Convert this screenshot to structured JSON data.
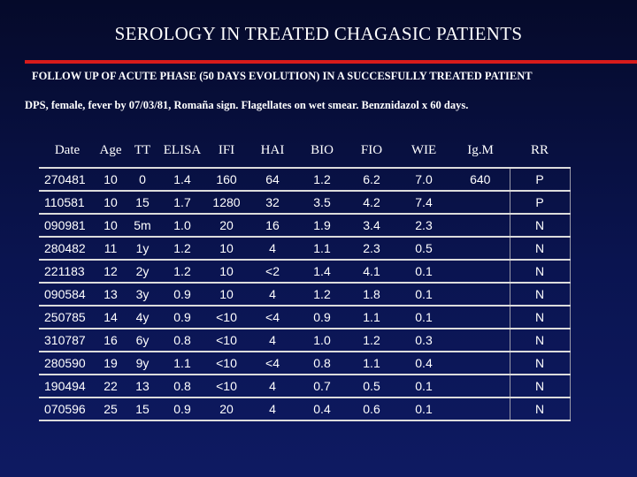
{
  "title": "SEROLOGY IN TREATED CHAGASIC PATIENTS",
  "subtitle": "FOLLOW UP OF ACUTE PHASE (50 DAYS EVOLUTION) IN A SUCCESFULLY TREATED PATIENT",
  "patient_info": "DPS, female, fever by 07/03/81, Romaña sign. Flagellates on wet smear. Benznidazol x 60 days.",
  "accent_color": "#d81b1b",
  "table": {
    "headers": [
      "Date",
      "Age",
      "TT",
      "ELISA",
      "IFI",
      "HAI",
      "BIO",
      "FIO",
      "WIE",
      "Ig.M",
      "RR"
    ],
    "rows": [
      [
        "270481",
        "10",
        "0",
        "1.4",
        "160",
        "64",
        "1.2",
        "6.2",
        "7.0",
        "640",
        "P"
      ],
      [
        "110581",
        "10",
        "15",
        "1.7",
        "1280",
        "32",
        "3.5",
        "4.2",
        "7.4",
        "",
        "P"
      ],
      [
        "090981",
        "10",
        "5m",
        "1.0",
        "20",
        "16",
        "1.9",
        "3.4",
        "2.3",
        "",
        "N"
      ],
      [
        "280482",
        "11",
        "1y",
        "1.2",
        "10",
        "4",
        "1.1",
        "2.3",
        "0.5",
        "",
        "N"
      ],
      [
        "221183",
        "12",
        "2y",
        "1.2",
        "10",
        "<2",
        "1.4",
        "4.1",
        "0.1",
        "",
        "N"
      ],
      [
        "090584",
        "13",
        "3y",
        "0.9",
        "10",
        "4",
        "1.2",
        "1.8",
        "0.1",
        "",
        "N"
      ],
      [
        "250785",
        "14",
        "4y",
        "0.9",
        "<10",
        "<4",
        "0.9",
        "1.1",
        "0.1",
        "",
        "N"
      ],
      [
        "310787",
        "16",
        "6y",
        "0.8",
        "<10",
        "4",
        "1.0",
        "1.2",
        "0.3",
        "",
        "N"
      ],
      [
        "280590",
        "19",
        "9y",
        "1.1",
        "<10",
        "<4",
        "0.8",
        "1.1",
        "0.4",
        "",
        "N"
      ],
      [
        "190494",
        "22",
        "13",
        "0.8",
        "<10",
        "4",
        "0.7",
        "0.5",
        "0.1",
        "",
        "N"
      ],
      [
        "070596",
        "25",
        "15",
        "0.9",
        "20",
        "4",
        "0.4",
        "0.6",
        "0.1",
        "",
        "N"
      ]
    ]
  }
}
